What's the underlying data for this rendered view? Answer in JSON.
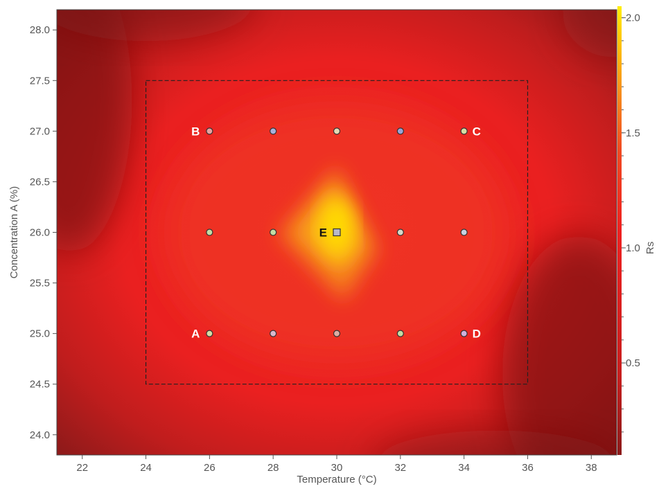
{
  "chart_data": {
    "type": "heatmap",
    "title": "",
    "xlabel": "Temperature (°C)",
    "ylabel": "Concentration A (%)",
    "xlim": [
      21.2,
      38.8
    ],
    "ylim": [
      23.8,
      28.2
    ],
    "x_ticks": [
      22,
      24,
      26,
      28,
      30,
      32,
      34,
      36,
      38
    ],
    "y_ticks": [
      24.0,
      24.5,
      25.0,
      25.5,
      26.0,
      26.5,
      27.0,
      27.5,
      28.0
    ],
    "colorbar": {
      "label": "Rs",
      "range": [
        0.1,
        2.05
      ],
      "ticks": [
        0.5,
        1.0,
        1.5,
        2.0
      ],
      "colors": [
        "#8b1a1a",
        "#c81e1e",
        "#ee2020",
        "#f04a22",
        "#f7941d",
        "#ffd200",
        "#ffee00"
      ]
    },
    "design_space": {
      "x": [
        24,
        36
      ],
      "y": [
        24.5,
        27.5
      ]
    },
    "peak": {
      "x": 30,
      "y": 26,
      "value": 2.05
    },
    "grid": false,
    "points": [
      {
        "x": 26,
        "y": 27,
        "color": "#e8a2a0",
        "label": "B",
        "shape": "circle"
      },
      {
        "x": 28,
        "y": 27,
        "color": "#a8b0dc",
        "label": "",
        "shape": "circle"
      },
      {
        "x": 30,
        "y": 27,
        "color": "#e4d8b4",
        "label": "",
        "shape": "circle"
      },
      {
        "x": 32,
        "y": 27,
        "color": "#9aa4d8",
        "label": "",
        "shape": "circle"
      },
      {
        "x": 34,
        "y": 27,
        "color": "#d6dca4",
        "label": "C",
        "shape": "circle"
      },
      {
        "x": 26,
        "y": 26,
        "color": "#c4dca4",
        "label": "",
        "shape": "circle"
      },
      {
        "x": 28,
        "y": 26,
        "color": "#c4dca4",
        "label": "",
        "shape": "circle"
      },
      {
        "x": 30,
        "y": 26,
        "color": "#b8b8c8",
        "label": "E",
        "shape": "square"
      },
      {
        "x": 32,
        "y": 26,
        "color": "#d8d8c8",
        "label": "",
        "shape": "circle"
      },
      {
        "x": 34,
        "y": 26,
        "color": "#c8d0e0",
        "label": "",
        "shape": "circle"
      },
      {
        "x": 26,
        "y": 25,
        "color": "#d6dca4",
        "label": "A",
        "shape": "circle"
      },
      {
        "x": 28,
        "y": 25,
        "color": "#d8b8cc",
        "label": "",
        "shape": "circle"
      },
      {
        "x": 30,
        "y": 25,
        "color": "#dcaca4",
        "label": "",
        "shape": "circle"
      },
      {
        "x": 32,
        "y": 25,
        "color": "#c4dca4",
        "label": "",
        "shape": "circle"
      },
      {
        "x": 34,
        "y": 25,
        "color": "#d0b0dc",
        "label": "D",
        "shape": "circle"
      }
    ]
  }
}
